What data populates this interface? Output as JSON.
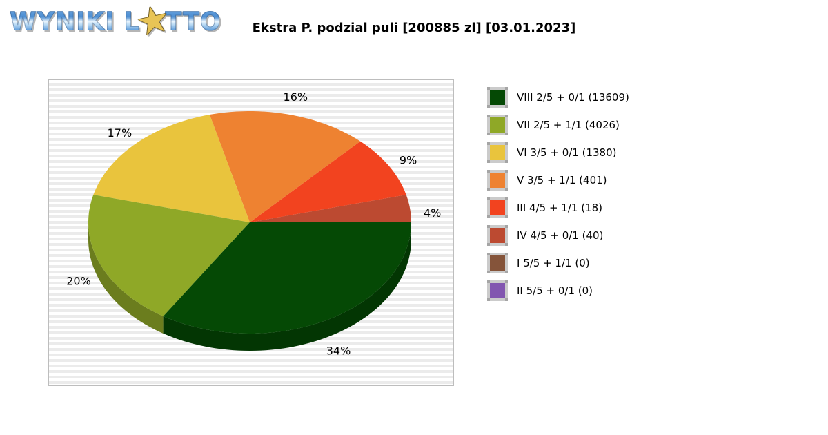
{
  "logo": {
    "text_before_star": "WYNIKI L",
    "text_after_star": "TTO",
    "star_glyph": "★",
    "star_color": "#e8c456"
  },
  "title": "Ekstra P. podzial puli [200885 zl] [03.01.2023]",
  "chart_data": {
    "type": "pie",
    "style": "3d",
    "title": "Ekstra P. podzial puli [200885 zl] [03.01.2023]",
    "pool_total": "200885 zl",
    "date": "03.01.2023",
    "legend_position": "right",
    "slices": [
      {
        "name": "IV 4/5 + 0/1",
        "count": 40,
        "percent": 4,
        "color": "#bc4a31",
        "color_dark": "#8c3622"
      },
      {
        "name": "III 4/5 + 1/1",
        "count": 18,
        "percent": 9,
        "color": "#f2431f",
        "color_dark": "#b53117"
      },
      {
        "name": "V 3/5 + 1/1",
        "count": 401,
        "percent": 16,
        "color": "#ee8231",
        "color_dark": "#b26124"
      },
      {
        "name": "VI 3/5 + 0/1",
        "count": 1380,
        "percent": 17,
        "color": "#e9c43d",
        "color_dark": "#af932d"
      },
      {
        "name": "VII 2/5 + 1/1",
        "count": 4026,
        "percent": 20,
        "color": "#8fa827",
        "color_dark": "#6b7d1e"
      },
      {
        "name": "VIII 2/5 + 0/1",
        "count": 13609,
        "percent": 34,
        "color": "#054905",
        "color_dark": "#033603"
      }
    ],
    "legend": [
      {
        "label": "VIII 2/5 + 0/1 (13609)",
        "color": "#054905"
      },
      {
        "label": "VII 2/5 + 1/1 (4026)",
        "color": "#8fa827"
      },
      {
        "label": "VI 3/5 + 0/1 (1380)",
        "color": "#e9c43d"
      },
      {
        "label": "V 3/5 + 1/1 (401)",
        "color": "#ee8231"
      },
      {
        "label": "III 4/5 + 1/1 (18)",
        "color": "#f2431f"
      },
      {
        "label": "IV 4/5 + 0/1 (40)",
        "color": "#bc4a31"
      },
      {
        "label": "I 5/5 + 1/1 (0)",
        "color": "#85543a"
      },
      {
        "label": "II 5/5 + 0/1 (0)",
        "color": "#8256b0"
      }
    ]
  }
}
